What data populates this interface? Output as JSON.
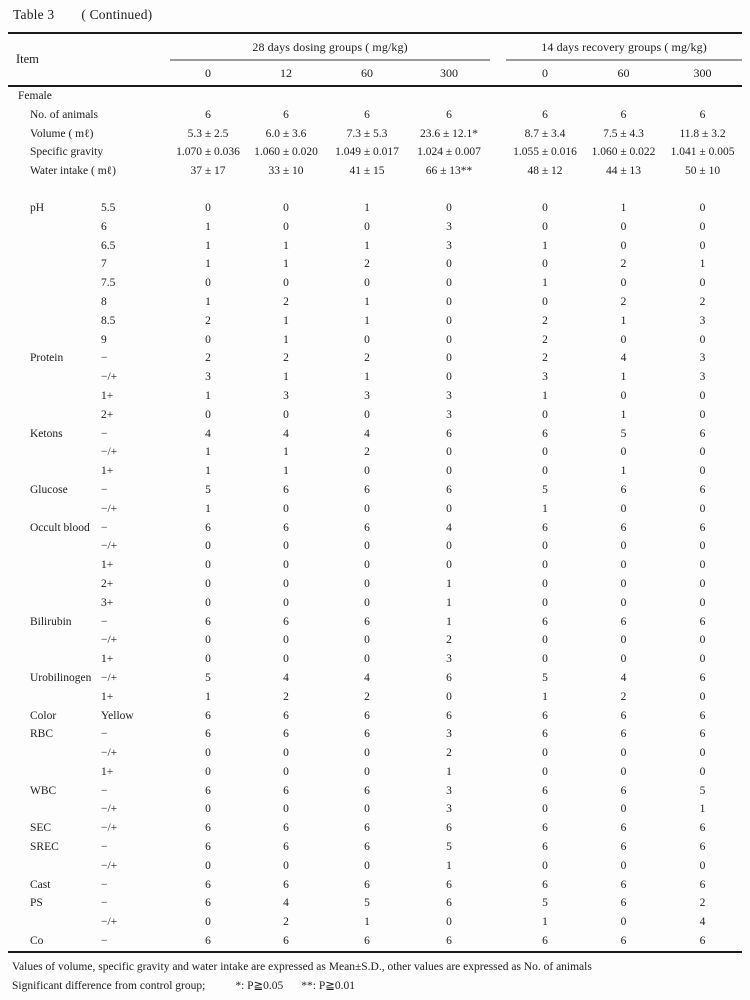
{
  "page": {
    "title": "Table 3",
    "continued": "( Continued)"
  },
  "table": {
    "item_header": "Item",
    "group1_label": "28 days dosing groups ( mg/kg)",
    "group2_label": "14 days recovery groups ( mg/kg)",
    "group1_doses": [
      "0",
      "12",
      "60",
      "300"
    ],
    "group2_doses": [
      "0",
      "60",
      "300"
    ],
    "section": "Female",
    "summary_rows": [
      {
        "label": "No. of animals",
        "values": [
          "6",
          "6",
          "6",
          "6",
          "6",
          "6",
          "6"
        ]
      },
      {
        "label": "Volume ( mℓ)",
        "values": [
          "5.3 ± 2.5",
          "6.0 ± 3.6",
          "7.3 ± 5.3",
          "23.6 ± 12.1*",
          "8.7 ± 3.4",
          "7.5 ± 4.3",
          "11.8 ± 3.2"
        ]
      },
      {
        "label": "Specific gravity",
        "values": [
          "1.070 ± 0.036",
          "1.060 ± 0.020",
          "1.049 ± 0.017",
          "1.024 ± 0.007",
          "1.055 ± 0.016",
          "1.060 ± 0.022",
          "1.041 ± 0.005"
        ]
      },
      {
        "label": "Water intake ( mℓ)",
        "values": [
          "37 ± 17",
          "33 ± 10",
          "41 ± 15",
          "66 ± 13**",
          "48 ± 12",
          "44 ± 13",
          "50 ± 10"
        ]
      }
    ],
    "detail_rows": [
      {
        "item": "pH",
        "sub": "5.5",
        "values": [
          "0",
          "0",
          "1",
          "0",
          "0",
          "1",
          "0"
        ]
      },
      {
        "item": "",
        "sub": "6",
        "values": [
          "1",
          "0",
          "0",
          "3",
          "0",
          "0",
          "0"
        ]
      },
      {
        "item": "",
        "sub": "6.5",
        "values": [
          "1",
          "1",
          "1",
          "3",
          "1",
          "0",
          "0"
        ]
      },
      {
        "item": "",
        "sub": "7",
        "values": [
          "1",
          "1",
          "2",
          "0",
          "0",
          "2",
          "1"
        ]
      },
      {
        "item": "",
        "sub": "7.5",
        "values": [
          "0",
          "0",
          "0",
          "0",
          "1",
          "0",
          "0"
        ]
      },
      {
        "item": "",
        "sub": "8",
        "values": [
          "1",
          "2",
          "1",
          "0",
          "0",
          "2",
          "2"
        ]
      },
      {
        "item": "",
        "sub": "8.5",
        "values": [
          "2",
          "1",
          "1",
          "0",
          "2",
          "1",
          "3"
        ]
      },
      {
        "item": "",
        "sub": "9",
        "values": [
          "0",
          "1",
          "0",
          "0",
          "2",
          "0",
          "0"
        ]
      },
      {
        "item": "Protein",
        "sub": "−",
        "values": [
          "2",
          "2",
          "2",
          "0",
          "2",
          "4",
          "3"
        ]
      },
      {
        "item": "",
        "sub": "−/+",
        "values": [
          "3",
          "1",
          "1",
          "0",
          "3",
          "1",
          "3"
        ]
      },
      {
        "item": "",
        "sub": "1+",
        "values": [
          "1",
          "3",
          "3",
          "3",
          "1",
          "0",
          "0"
        ]
      },
      {
        "item": "",
        "sub": "2+",
        "values": [
          "0",
          "0",
          "0",
          "3",
          "0",
          "1",
          "0"
        ]
      },
      {
        "item": "Ketons",
        "sub": "−",
        "values": [
          "4",
          "4",
          "4",
          "6",
          "6",
          "5",
          "6"
        ]
      },
      {
        "item": "",
        "sub": "−/+",
        "values": [
          "1",
          "1",
          "2",
          "0",
          "0",
          "0",
          "0"
        ]
      },
      {
        "item": "",
        "sub": "1+",
        "values": [
          "1",
          "1",
          "0",
          "0",
          "0",
          "1",
          "0"
        ]
      },
      {
        "item": "Glucose",
        "sub": "−",
        "values": [
          "5",
          "6",
          "6",
          "6",
          "5",
          "6",
          "6"
        ]
      },
      {
        "item": "",
        "sub": "−/+",
        "values": [
          "1",
          "0",
          "0",
          "0",
          "1",
          "0",
          "0"
        ]
      },
      {
        "item": "Occult blood",
        "sub": "−",
        "values": [
          "6",
          "6",
          "6",
          "4",
          "6",
          "6",
          "6"
        ]
      },
      {
        "item": "",
        "sub": "−/+",
        "values": [
          "0",
          "0",
          "0",
          "0",
          "0",
          "0",
          "0"
        ]
      },
      {
        "item": "",
        "sub": "1+",
        "values": [
          "0",
          "0",
          "0",
          "0",
          "0",
          "0",
          "0"
        ]
      },
      {
        "item": "",
        "sub": "2+",
        "values": [
          "0",
          "0",
          "0",
          "1",
          "0",
          "0",
          "0"
        ]
      },
      {
        "item": "",
        "sub": "3+",
        "values": [
          "0",
          "0",
          "0",
          "1",
          "0",
          "0",
          "0"
        ]
      },
      {
        "item": "Bilirubin",
        "sub": "−",
        "values": [
          "6",
          "6",
          "6",
          "1",
          "6",
          "6",
          "6"
        ]
      },
      {
        "item": "",
        "sub": "−/+",
        "values": [
          "0",
          "0",
          "0",
          "2",
          "0",
          "0",
          "0"
        ]
      },
      {
        "item": "",
        "sub": "1+",
        "values": [
          "0",
          "0",
          "0",
          "3",
          "0",
          "0",
          "0"
        ]
      },
      {
        "item": "Urobilinogen",
        "sub": "−/+",
        "values": [
          "5",
          "4",
          "4",
          "6",
          "5",
          "4",
          "6"
        ]
      },
      {
        "item": "",
        "sub": "1+",
        "values": [
          "1",
          "2",
          "2",
          "0",
          "1",
          "2",
          "0"
        ]
      },
      {
        "item": "Color",
        "sub": "Yellow",
        "values": [
          "6",
          "6",
          "6",
          "6",
          "6",
          "6",
          "6"
        ]
      },
      {
        "item": "RBC",
        "sub": "−",
        "values": [
          "6",
          "6",
          "6",
          "3",
          "6",
          "6",
          "6"
        ]
      },
      {
        "item": "",
        "sub": "−/+",
        "values": [
          "0",
          "0",
          "0",
          "2",
          "0",
          "0",
          "0"
        ]
      },
      {
        "item": "",
        "sub": "1+",
        "values": [
          "0",
          "0",
          "0",
          "1",
          "0",
          "0",
          "0"
        ]
      },
      {
        "item": "WBC",
        "sub": "−",
        "values": [
          "6",
          "6",
          "6",
          "3",
          "6",
          "6",
          "5"
        ]
      },
      {
        "item": "",
        "sub": "−/+",
        "values": [
          "0",
          "0",
          "0",
          "3",
          "0",
          "0",
          "1"
        ]
      },
      {
        "item": "SEC",
        "sub": "−/+",
        "values": [
          "6",
          "6",
          "6",
          "6",
          "6",
          "6",
          "6"
        ]
      },
      {
        "item": "SREC",
        "sub": "−",
        "values": [
          "6",
          "6",
          "6",
          "5",
          "6",
          "6",
          "6"
        ]
      },
      {
        "item": "",
        "sub": "−/+",
        "values": [
          "0",
          "0",
          "0",
          "1",
          "0",
          "0",
          "0"
        ]
      },
      {
        "item": "Cast",
        "sub": "−",
        "values": [
          "6",
          "6",
          "6",
          "6",
          "6",
          "6",
          "6"
        ]
      },
      {
        "item": "PS",
        "sub": "−",
        "values": [
          "6",
          "4",
          "5",
          "6",
          "5",
          "6",
          "2"
        ]
      },
      {
        "item": "",
        "sub": "−/+",
        "values": [
          "0",
          "2",
          "1",
          "0",
          "1",
          "0",
          "4"
        ]
      },
      {
        "item": "Co",
        "sub": "−",
        "values": [
          "6",
          "6",
          "6",
          "6",
          "6",
          "6",
          "6"
        ]
      }
    ]
  },
  "footnotes": {
    "line1": "Values of volume, specific gravity and water intake are expressed as Mean±S.D., other values are expressed as No. of animals",
    "line2_prefix": "Significant difference from control group;",
    "line2_sig1": "*: P≧0.05",
    "line2_sig2": "**: P≧0.01"
  }
}
